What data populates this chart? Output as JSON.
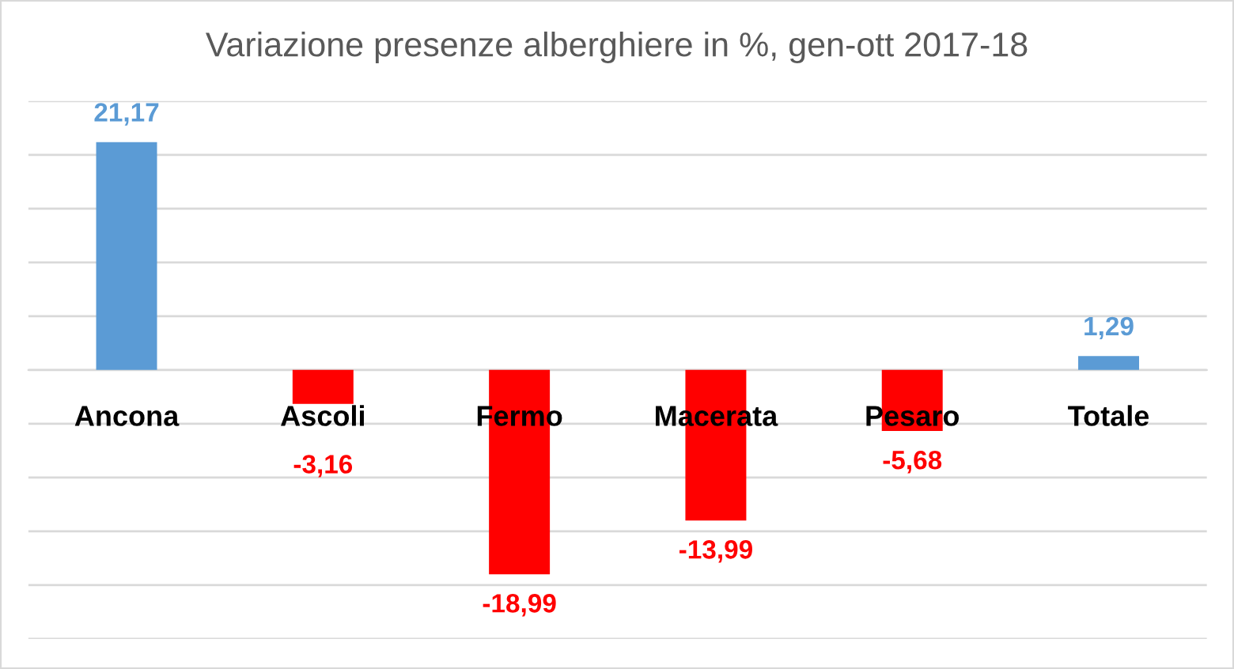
{
  "chart_data": {
    "type": "bar",
    "title": "Variazione presenze alberghiere in %, gen-ott 2017-18",
    "categories": [
      "Ancona",
      "Ascoli",
      "Fermo",
      "Macerata",
      "Pesaro",
      "Totale"
    ],
    "values": [
      21.17,
      -3.16,
      -18.99,
      -13.99,
      -5.68,
      1.29
    ],
    "colors": [
      "#5b9bd5",
      "#ff0000",
      "#ff0000",
      "#ff0000",
      "#ff0000",
      "#5b9bd5"
    ],
    "value_labels": [
      "21,17",
      "-3,16",
      "-18,99",
      "-13,99",
      "-5,68",
      "1,29"
    ],
    "ylim": [
      -25,
      25
    ],
    "yticks": [
      {
        "value": -25,
        "label": null
      },
      {
        "value": -20,
        "label": null
      },
      {
        "value": -15,
        "label": null
      },
      {
        "value": -10,
        "label": null
      },
      {
        "value": -5,
        "label": null
      },
      {
        "value": 0,
        "label": null
      },
      {
        "value": 5,
        "label": null
      },
      {
        "value": 10,
        "label": null
      },
      {
        "value": 15,
        "label": null
      },
      {
        "value": 20,
        "label": null
      },
      {
        "value": 25,
        "label": null
      }
    ],
    "grid": "y",
    "tick_labels": "x"
  }
}
